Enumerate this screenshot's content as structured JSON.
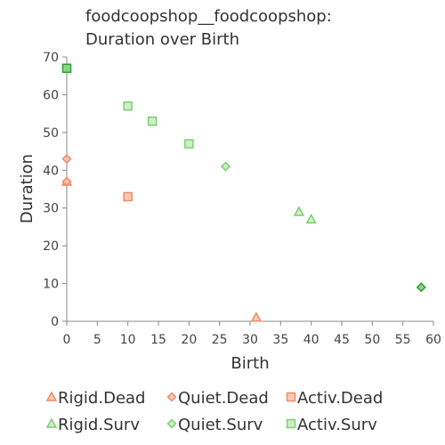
{
  "chart_data": {
    "type": "scatter",
    "title": [
      "foodcoopshop__foodcoopshop:",
      "Duration over Birth"
    ],
    "xlabel": "Birth",
    "ylabel": "Duration",
    "xlim": [
      0,
      60
    ],
    "ylim": [
      0,
      70
    ],
    "xticks": [
      0,
      5,
      10,
      15,
      20,
      25,
      30,
      35,
      40,
      45,
      50,
      55,
      60
    ],
    "yticks": [
      0,
      10,
      20,
      30,
      40,
      50,
      60,
      70
    ],
    "grid": false,
    "legend_position": "bottom",
    "colors": {
      "dead_fill": "#f9c2a8",
      "dead_stroke": "#f08a6a",
      "surv_fill": "#c4ebbd",
      "surv_stroke": "#7fcf74",
      "dark_green": "#2e9e2e",
      "dark_red": "#e05040"
    },
    "series": [
      {
        "name": "Rigid.Dead",
        "shape": "triangle",
        "group": "dead",
        "points": [
          [
            0,
            37
          ],
          [
            31,
            1
          ]
        ]
      },
      {
        "name": "Quiet.Dead",
        "shape": "diamond",
        "group": "dead",
        "points": [
          [
            0,
            43
          ],
          [
            0,
            37
          ]
        ]
      },
      {
        "name": "Activ.Dead",
        "shape": "square",
        "group": "dead",
        "points": [
          [
            10,
            33
          ]
        ]
      },
      {
        "name": "Rigid.Surv",
        "shape": "triangle",
        "group": "surv",
        "points": [
          [
            38,
            29
          ],
          [
            40,
            27
          ]
        ]
      },
      {
        "name": "Quiet.Surv",
        "shape": "diamond",
        "group": "surv",
        "points": [
          [
            26,
            41
          ],
          [
            58,
            9
          ],
          [
            58,
            9
          ],
          [
            58,
            9
          ]
        ]
      },
      {
        "name": "Activ.Surv",
        "shape": "square",
        "group": "surv",
        "points": [
          [
            0,
            67
          ],
          [
            0,
            67
          ],
          [
            0,
            67
          ],
          [
            10,
            57
          ],
          [
            14,
            53
          ],
          [
            20,
            47
          ]
        ]
      }
    ]
  }
}
